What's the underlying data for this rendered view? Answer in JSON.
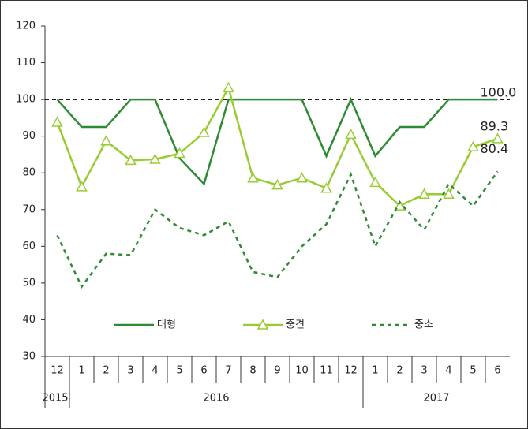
{
  "chart_data": {
    "type": "line",
    "categories": [
      "12",
      "1",
      "2",
      "3",
      "4",
      "5",
      "6",
      "7",
      "8",
      "9",
      "10",
      "11",
      "12",
      "1",
      "2",
      "3",
      "4",
      "5",
      "6"
    ],
    "year_groups": [
      {
        "label": "2015",
        "count": 1
      },
      {
        "label": "2016",
        "count": 12
      },
      {
        "label": "2017",
        "count": 6
      }
    ],
    "ylim": [
      30,
      120
    ],
    "yticks": [
      30,
      40,
      50,
      60,
      70,
      80,
      90,
      100,
      110,
      120
    ],
    "reference_line": 100,
    "series": [
      {
        "name": "대형",
        "color": "#2e8b34",
        "style": "solid",
        "marker": null,
        "values": [
          100,
          92.5,
          92.5,
          100,
          100,
          84,
          77,
          100,
          100,
          100,
          100,
          84.6,
          100,
          84.6,
          92.5,
          92.5,
          100,
          100,
          100
        ],
        "value_labels": [
          null,
          null,
          null,
          null,
          null,
          null,
          null,
          null,
          null,
          null,
          null,
          null,
          null,
          null,
          null,
          null,
          null,
          null,
          "100.0"
        ]
      },
      {
        "name": "중견",
        "color": "#99cc33",
        "style": "solid",
        "marker": "triangle",
        "values": [
          93.8,
          76.2,
          88.7,
          83.4,
          83.7,
          85.3,
          91,
          103.2,
          78.6,
          76.7,
          78.6,
          75.8,
          90.5,
          77.4,
          71,
          74.2,
          74.2,
          87.1,
          89.3
        ],
        "value_labels": [
          null,
          null,
          null,
          null,
          null,
          null,
          null,
          null,
          null,
          null,
          null,
          null,
          null,
          null,
          null,
          null,
          null,
          null,
          "89.3"
        ]
      },
      {
        "name": "중소",
        "color": "#2e8b34",
        "style": "dashed",
        "marker": null,
        "values": [
          63,
          49,
          58,
          57.6,
          70,
          65,
          63,
          66.8,
          53,
          51.6,
          60,
          66,
          79.6,
          60,
          72,
          64.5,
          77,
          71,
          80.4
        ],
        "value_labels": [
          null,
          null,
          null,
          null,
          null,
          null,
          null,
          null,
          null,
          null,
          null,
          null,
          null,
          null,
          null,
          null,
          null,
          null,
          "80.4"
        ]
      }
    ]
  }
}
